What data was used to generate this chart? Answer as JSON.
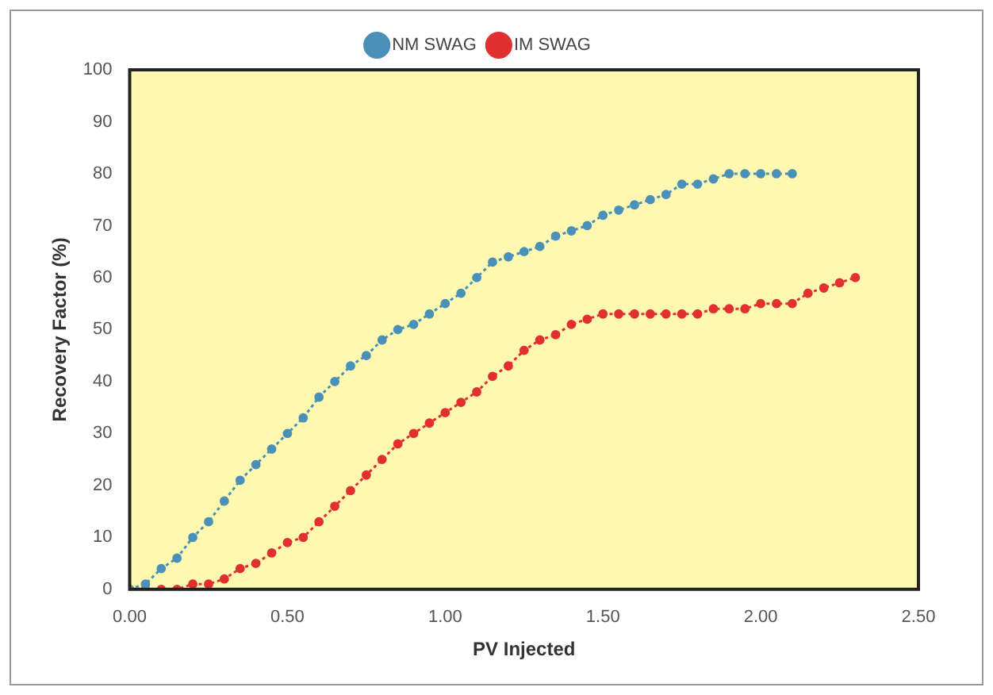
{
  "chart_data": {
    "type": "line",
    "xlabel": "PV Injected",
    "ylabel": "Recovery Factor (%)",
    "xlim": [
      0,
      2.5
    ],
    "xticks": [
      {
        "value": 0,
        "label": "0.00"
      },
      {
        "value": 0.5,
        "label": "0.50"
      },
      {
        "value": 1,
        "label": "1.00"
      },
      {
        "value": 1.5,
        "label": "1.50"
      },
      {
        "value": 2,
        "label": "2.00"
      },
      {
        "value": 2.5,
        "label": "2.50"
      }
    ],
    "ylim": [
      0,
      100
    ],
    "yticks": [
      0,
      10,
      20,
      30,
      40,
      50,
      60,
      70,
      80,
      90,
      100
    ],
    "grid": false,
    "legend": "top",
    "marker": "circle",
    "line_style": "dotted",
    "series": [
      {
        "name": "NM SWAG",
        "color": "#4a90b8",
        "x": [
          0,
          0.05,
          0.1,
          0.15,
          0.2,
          0.25,
          0.3,
          0.35,
          0.4,
          0.45,
          0.5,
          0.55,
          0.6,
          0.65,
          0.7,
          0.75,
          0.8,
          0.85,
          0.9,
          0.95,
          1.0,
          1.05,
          1.1,
          1.15,
          1.2,
          1.25,
          1.3,
          1.35,
          1.4,
          1.45,
          1.5,
          1.55,
          1.6,
          1.65,
          1.7,
          1.75,
          1.8,
          1.85,
          1.9,
          1.95,
          2.0,
          2.05,
          2.1
        ],
        "values": [
          0,
          1,
          4,
          6,
          10,
          13,
          17,
          21,
          24,
          27,
          30,
          33,
          37,
          40,
          43,
          45,
          48,
          50,
          51,
          53,
          55,
          57,
          60,
          63,
          64,
          65,
          66,
          68,
          69,
          70,
          72,
          73,
          74,
          75,
          76,
          78,
          78,
          79,
          80,
          80,
          80,
          80,
          80
        ]
      },
      {
        "name": "IM SWAG",
        "color": "#e03030",
        "x": [
          0,
          0.05,
          0.1,
          0.15,
          0.2,
          0.25,
          0.3,
          0.35,
          0.4,
          0.45,
          0.5,
          0.55,
          0.6,
          0.65,
          0.7,
          0.75,
          0.8,
          0.85,
          0.9,
          0.95,
          1.0,
          1.05,
          1.1,
          1.15,
          1.2,
          1.25,
          1.3,
          1.35,
          1.4,
          1.45,
          1.5,
          1.55,
          1.6,
          1.65,
          1.7,
          1.75,
          1.8,
          1.85,
          1.9,
          1.95,
          2.0,
          2.05,
          2.1,
          2.15,
          2.2,
          2.25,
          2.3
        ],
        "values": [
          0,
          0,
          0,
          0,
          1,
          1,
          2,
          4,
          5,
          7,
          9,
          10,
          13,
          16,
          19,
          22,
          25,
          28,
          30,
          32,
          34,
          36,
          38,
          41,
          43,
          46,
          48,
          49,
          51,
          52,
          53,
          53,
          53,
          53,
          53,
          53,
          53,
          54,
          54,
          54,
          55,
          55,
          55,
          57,
          58,
          59,
          60
        ]
      }
    ]
  }
}
